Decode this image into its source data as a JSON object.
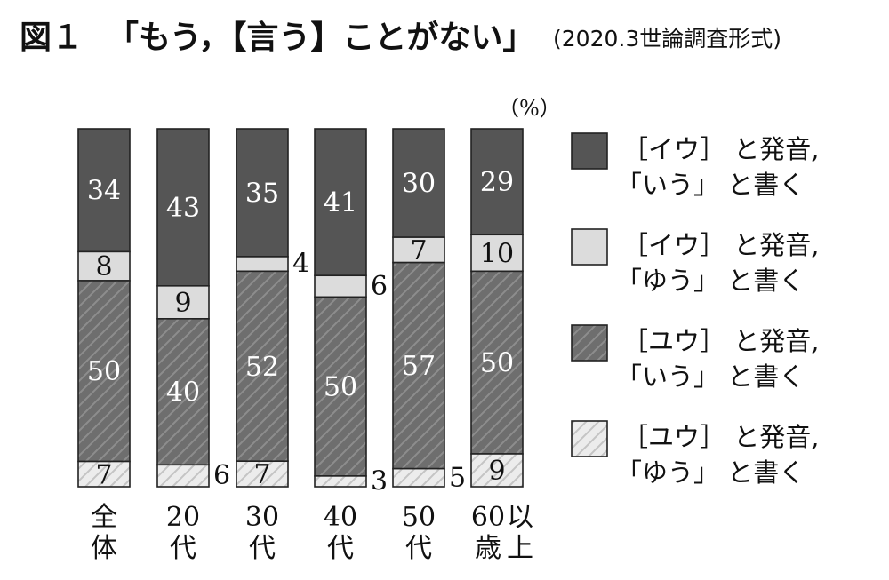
{
  "header": {
    "figure_number": "図１",
    "title": "「もう，【言う】ことがない」",
    "subtitle": "(2020.3世論調査形式)"
  },
  "chart_data": {
    "type": "bar",
    "stacked": true,
    "unit": "（%）",
    "categories": [
      {
        "line1": "全",
        "line2": "体"
      },
      {
        "line1": "20",
        "line2": "代"
      },
      {
        "line1": "30",
        "line2": "代"
      },
      {
        "line1": "40",
        "line2": "代"
      },
      {
        "line1": "50",
        "line2": "代"
      },
      {
        "line1": "60",
        "line1b": "以",
        "line2": "歳",
        "line2b": "上"
      }
    ],
    "series": [
      {
        "line1": "［イウ］ と発音,",
        "line2": "「いう」 と書く",
        "color": "#555555",
        "pattern": "solid",
        "values": [
          34,
          43,
          35,
          41,
          30,
          29
        ]
      },
      {
        "line1": "［イウ］ と発音,",
        "line2": "「ゆう」 と書く",
        "color": "#dcdcdc",
        "pattern": "solid",
        "values": [
          8,
          9,
          4,
          6,
          7,
          10
        ]
      },
      {
        "line1": "［ユウ］ と発音,",
        "line2": "「いう」 と書く",
        "color": "#6e6e6e",
        "pattern": "hatch",
        "values": [
          50,
          40,
          52,
          50,
          57,
          50
        ]
      },
      {
        "line1": "［ユウ］ と発音,",
        "line2": "「ゆう」 と書く",
        "color": "#dcdcdc",
        "pattern": "hatch",
        "values": [
          7,
          6,
          7,
          3,
          5,
          9
        ]
      }
    ],
    "value_labels": [
      [
        "34",
        "43",
        "35",
        "41",
        "30",
        "29"
      ],
      [
        "8",
        "9",
        "4",
        "6",
        "7",
        "10"
      ],
      [
        "50",
        "40",
        "52",
        "50",
        "57",
        "50"
      ],
      [
        "7",
        "6",
        "7",
        "3",
        "5",
        "9"
      ]
    ],
    "outside_labels": [
      [
        false,
        false,
        false,
        false,
        false,
        false
      ],
      [
        false,
        false,
        true,
        true,
        false,
        false
      ],
      [
        false,
        false,
        false,
        false,
        false,
        false
      ],
      [
        false,
        true,
        false,
        true,
        true,
        false
      ]
    ],
    "ylim": [
      0,
      100
    ]
  }
}
